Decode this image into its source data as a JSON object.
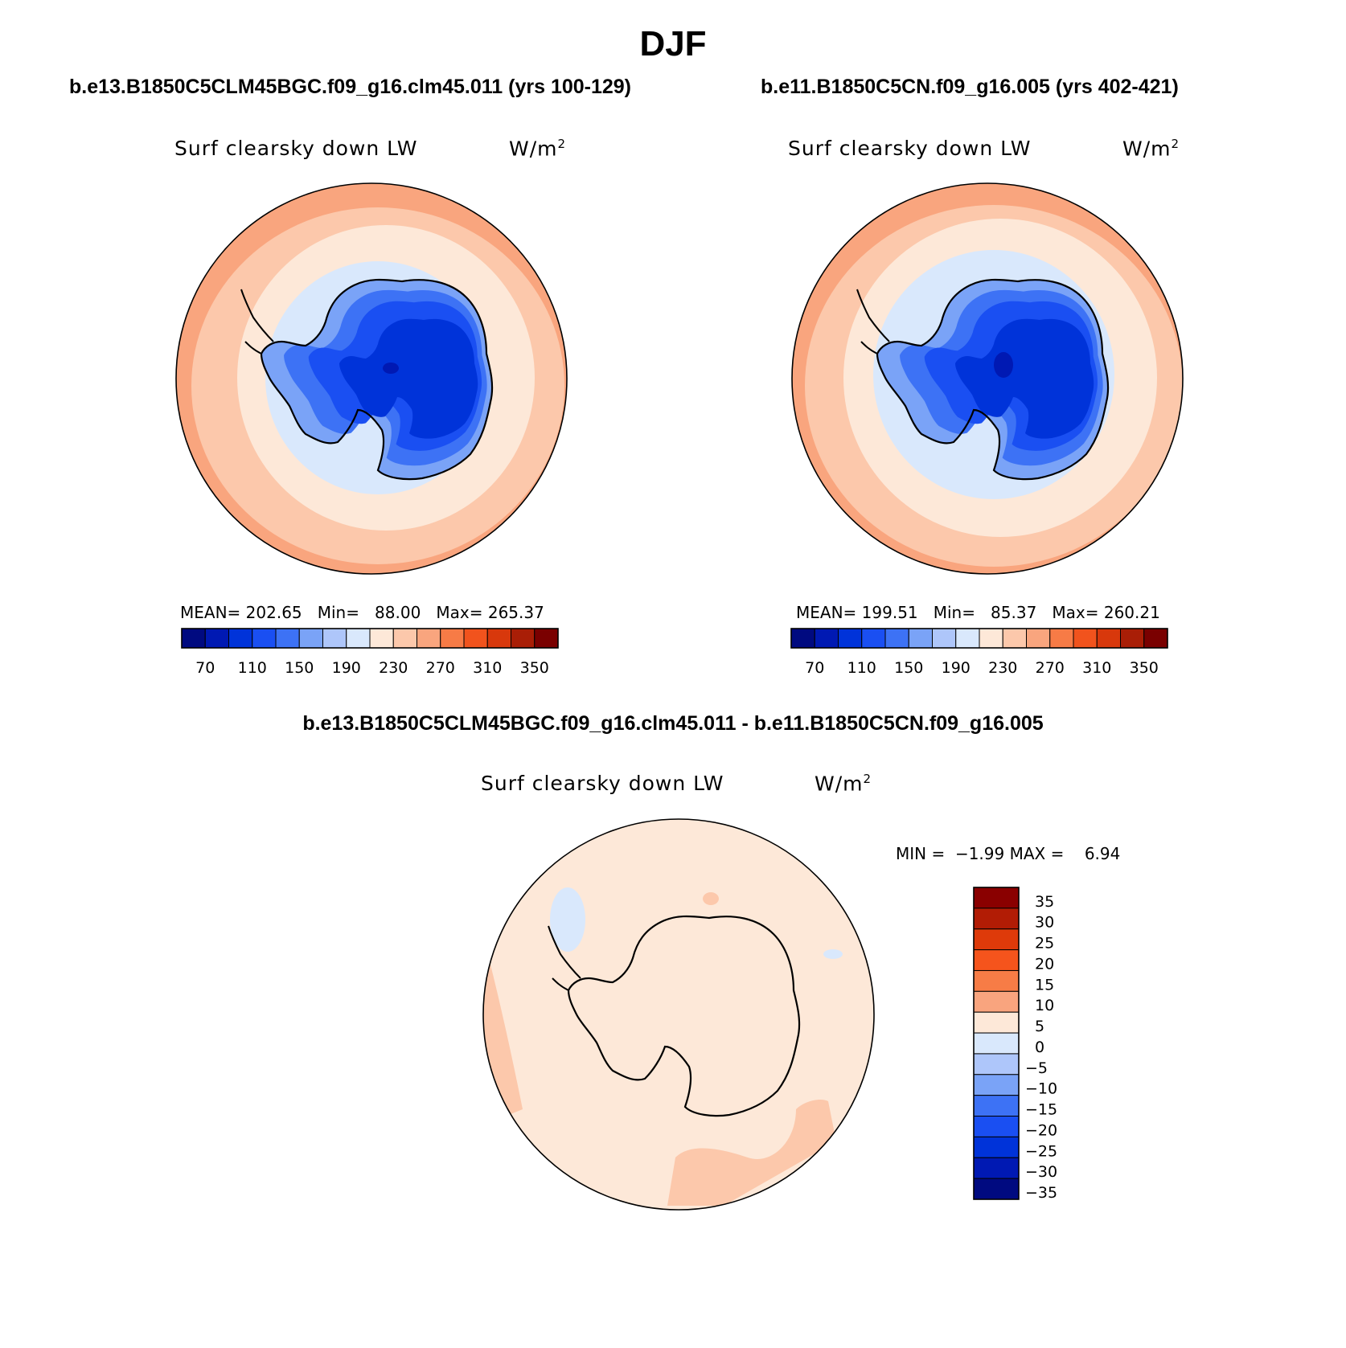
{
  "page": {
    "title": "DJF"
  },
  "panels": {
    "left": {
      "case": "b.e13.B1850C5CLM45BGC.f09_g16.clm45.011 (yrs 100-129)",
      "variable": "Surf clearsky down LW",
      "units": "W/m",
      "units_sup": "2",
      "mean_label": "MEAN=",
      "mean": "202.65",
      "min_label": "Min=",
      "min": "88.00",
      "max_label": "Max=",
      "max": "265.37"
    },
    "right": {
      "case": "b.e11.B1850C5CN.f09_g16.005 (yrs 402-421)",
      "variable": "Surf clearsky down LW",
      "units": "W/m",
      "units_sup": "2",
      "mean_label": "MEAN=",
      "mean": "199.51",
      "min_label": "Min=",
      "min": "85.37",
      "max_label": "Max=",
      "max": "260.21"
    },
    "diff": {
      "case": "b.e13.B1850C5CLM45BGC.f09_g16.clm45.011 - b.e11.B1850C5CN.f09_g16.005",
      "variable": "Surf clearsky down LW",
      "units": "W/m",
      "units_sup": "2",
      "min_label": "MIN =",
      "min": "−1.99",
      "max_label": "MAX =",
      "max": "6.94"
    }
  },
  "chart_data": [
    {
      "type": "heatmap",
      "name": "left-map",
      "title": "Surf clearsky down LW",
      "projection": "south polar stereographic",
      "colorbar_levels": [
        70,
        110,
        150,
        190,
        230,
        270,
        310,
        350
      ],
      "colorbar_colors": [
        "#000a80",
        "#0019b3",
        "#0033d9",
        "#1a4ff2",
        "#3d72f5",
        "#7aa3f7",
        "#aec6fa",
        "#d9e8fc",
        "#fde8d8",
        "#fcc8ab",
        "#f9a57e",
        "#f77b46",
        "#f1531d",
        "#d8380c",
        "#a91e06",
        "#7a0000"
      ],
      "stats": {
        "mean": 202.65,
        "min": 88.0,
        "max": 265.37
      }
    },
    {
      "type": "heatmap",
      "name": "right-map",
      "title": "Surf clearsky down LW",
      "projection": "south polar stereographic",
      "colorbar_levels": [
        70,
        110,
        150,
        190,
        230,
        270,
        310,
        350
      ],
      "colorbar_colors": [
        "#000a80",
        "#0019b3",
        "#0033d9",
        "#1a4ff2",
        "#3d72f5",
        "#7aa3f7",
        "#aec6fa",
        "#d9e8fc",
        "#fde8d8",
        "#fcc8ab",
        "#f9a57e",
        "#f77b46",
        "#f1531d",
        "#d8380c",
        "#a91e06",
        "#7a0000"
      ],
      "stats": {
        "mean": 199.51,
        "min": 85.37,
        "max": 260.21
      }
    },
    {
      "type": "heatmap",
      "name": "diff-map",
      "title": "Surf clearsky down LW",
      "projection": "south polar stereographic",
      "colorbar_levels": [
        "35",
        "30",
        "25",
        "20",
        "15",
        "10",
        "5",
        "0",
        "−5",
        "−10",
        "−15",
        "−20",
        "−25",
        "−30",
        "−35"
      ],
      "colorbar_colors": [
        "#8a0000",
        "#b21c05",
        "#de3a0a",
        "#f5541c",
        "#f77c46",
        "#f9a47e",
        "#fde8d8",
        "#d9e8fc",
        "#aec6fa",
        "#7aa3f7",
        "#3d72f5",
        "#1a4ff2",
        "#0033d9",
        "#0019b3",
        "#000a80"
      ],
      "stats": {
        "min": -1.99,
        "max": 6.94
      }
    }
  ]
}
